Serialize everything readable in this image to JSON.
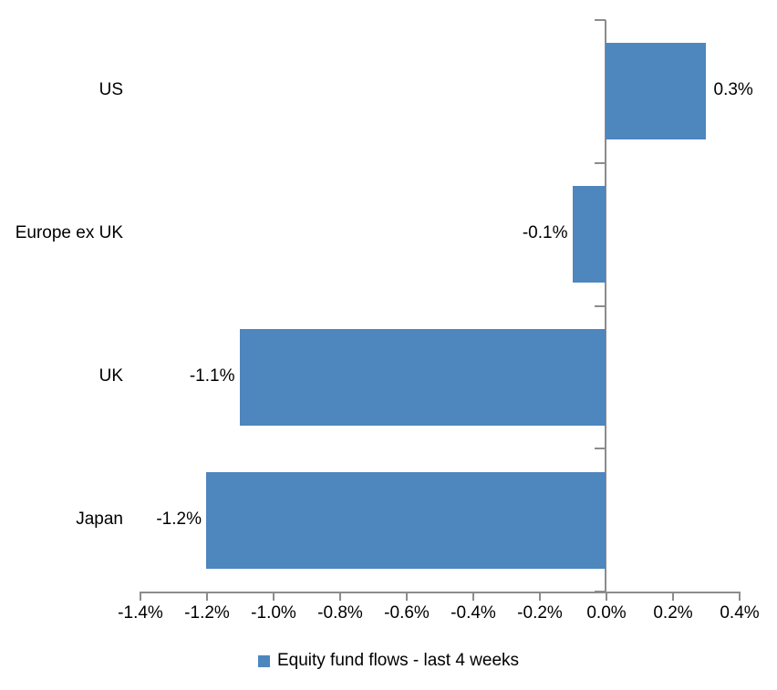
{
  "chart_data": {
    "type": "bar",
    "orientation": "horizontal",
    "title": "",
    "xlabel": "",
    "ylabel": "",
    "categories": [
      "US",
      "Europe ex UK",
      "UK",
      "Japan"
    ],
    "values": [
      0.3,
      -0.1,
      -1.1,
      -1.2
    ],
    "value_labels": [
      "0.3%",
      "-0.1%",
      "-1.1%",
      "-1.2%"
    ],
    "series_name": "Equity fund flows - last 4 weeks",
    "xlim": [
      -1.4,
      0.4
    ],
    "x_ticks": [
      -1.4,
      -1.2,
      -1.0,
      -0.8,
      -0.6,
      -0.4,
      -0.2,
      0.0,
      0.2,
      0.4
    ],
    "x_tick_labels": [
      "-1.4%",
      "-1.2%",
      "-1.0%",
      "-0.8%",
      "-0.6%",
      "-0.4%",
      "-0.2%",
      "0.0%",
      "0.2%",
      "0.4%"
    ],
    "grid": false,
    "legend_position": "bottom",
    "bar_color": "#4E86BE",
    "axis_color": "#8C8C8C",
    "text_color": "#000000",
    "background_color": "#FFFFFF"
  },
  "legend": {
    "label": "Equity fund flows - last 4 weeks"
  }
}
